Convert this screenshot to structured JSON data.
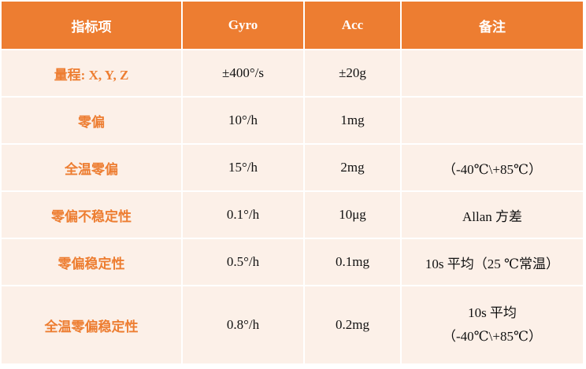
{
  "table": {
    "header": [
      "指标项",
      "Gyro",
      "Acc",
      "备注"
    ],
    "rows": [
      [
        "量程: X, Y, Z",
        "±400°/s",
        "±20g"
      ],
      [
        "零偏",
        "10°/h",
        "1mg"
      ],
      [
        "全温零偏",
        "15°/h",
        "2mg",
        "（-40℃\\+85℃）"
      ],
      [
        "零偏不稳定性",
        "0.1°/h",
        "10μg",
        "Allan 方差"
      ],
      [
        "零偏稳定性",
        "0.5°/h",
        "0.1mg",
        "10s 平均（25 ℃常温）"
      ],
      [
        "全温零偏稳定性",
        "0.8°/h",
        "0.2mg",
        [
          "10s 平均",
          "（-40℃\\+85℃）"
        ]
      ]
    ]
  }
}
